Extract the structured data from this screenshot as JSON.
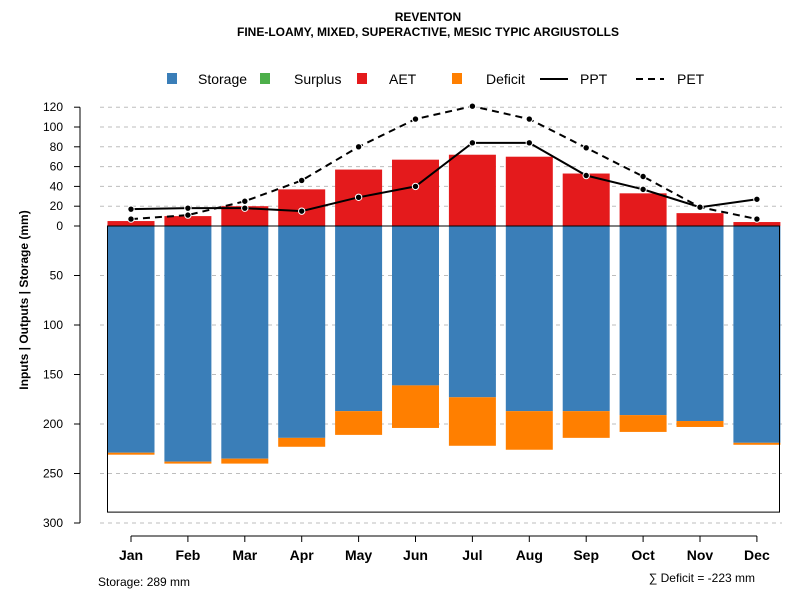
{
  "chart_data": {
    "type": "bar",
    "title": "REVENTON",
    "subtitle": "FINE-LOAMY, MIXED, SUPERACTIVE, MESIC TYPIC ARGIUSTOLLS",
    "ylabel": "Inputs | Outputs | Storage    (mm)",
    "categories": [
      "Jan",
      "Feb",
      "Mar",
      "Apr",
      "May",
      "Jun",
      "Jul",
      "Aug",
      "Sep",
      "Oct",
      "Nov",
      "Dec"
    ],
    "y_upper_ticks": [
      "120",
      "100",
      "80",
      "60",
      "40",
      "20",
      "0"
    ],
    "y_lower_ticks": [
      "50",
      "100",
      "150",
      "200",
      "250",
      "300"
    ],
    "ylim_upper": [
      0,
      120
    ],
    "ylim_lower": [
      0,
      300
    ],
    "series": [
      {
        "name": "Storage",
        "color": "#3A7EB8",
        "values": [
          229,
          238,
          235,
          214,
          187,
          161,
          173,
          187,
          187,
          191,
          197,
          219
        ]
      },
      {
        "name": "Surplus",
        "color": "#4DAF4A",
        "values": [
          0,
          0,
          0,
          0,
          0,
          0,
          0,
          0,
          0,
          0,
          0,
          0
        ]
      },
      {
        "name": "AET",
        "color": "#E41A1C",
        "values": [
          5,
          10,
          20,
          37,
          57,
          67,
          72,
          70,
          53,
          33,
          13,
          4
        ]
      },
      {
        "name": "Deficit",
        "color": "#FF7F00",
        "values": [
          2,
          2,
          5,
          9,
          24,
          43,
          49,
          39,
          27,
          17,
          6,
          2
        ]
      },
      {
        "name": "PPT",
        "color": "#000000",
        "line": "solid",
        "values": [
          17,
          18,
          18,
          15,
          29,
          40,
          84,
          84,
          51,
          37,
          19,
          27
        ]
      },
      {
        "name": "PET",
        "color": "#000000",
        "line": "dashed",
        "values": [
          7,
          11,
          25,
          46,
          80,
          108,
          121,
          108,
          79,
          50,
          19,
          7
        ]
      }
    ],
    "storage_capacity": 289,
    "legend_position": "top",
    "grid": true
  },
  "footer": {
    "storage_label": "Storage: 289 mm",
    "deficit_label": "∑ Deficit = -223 mm"
  }
}
